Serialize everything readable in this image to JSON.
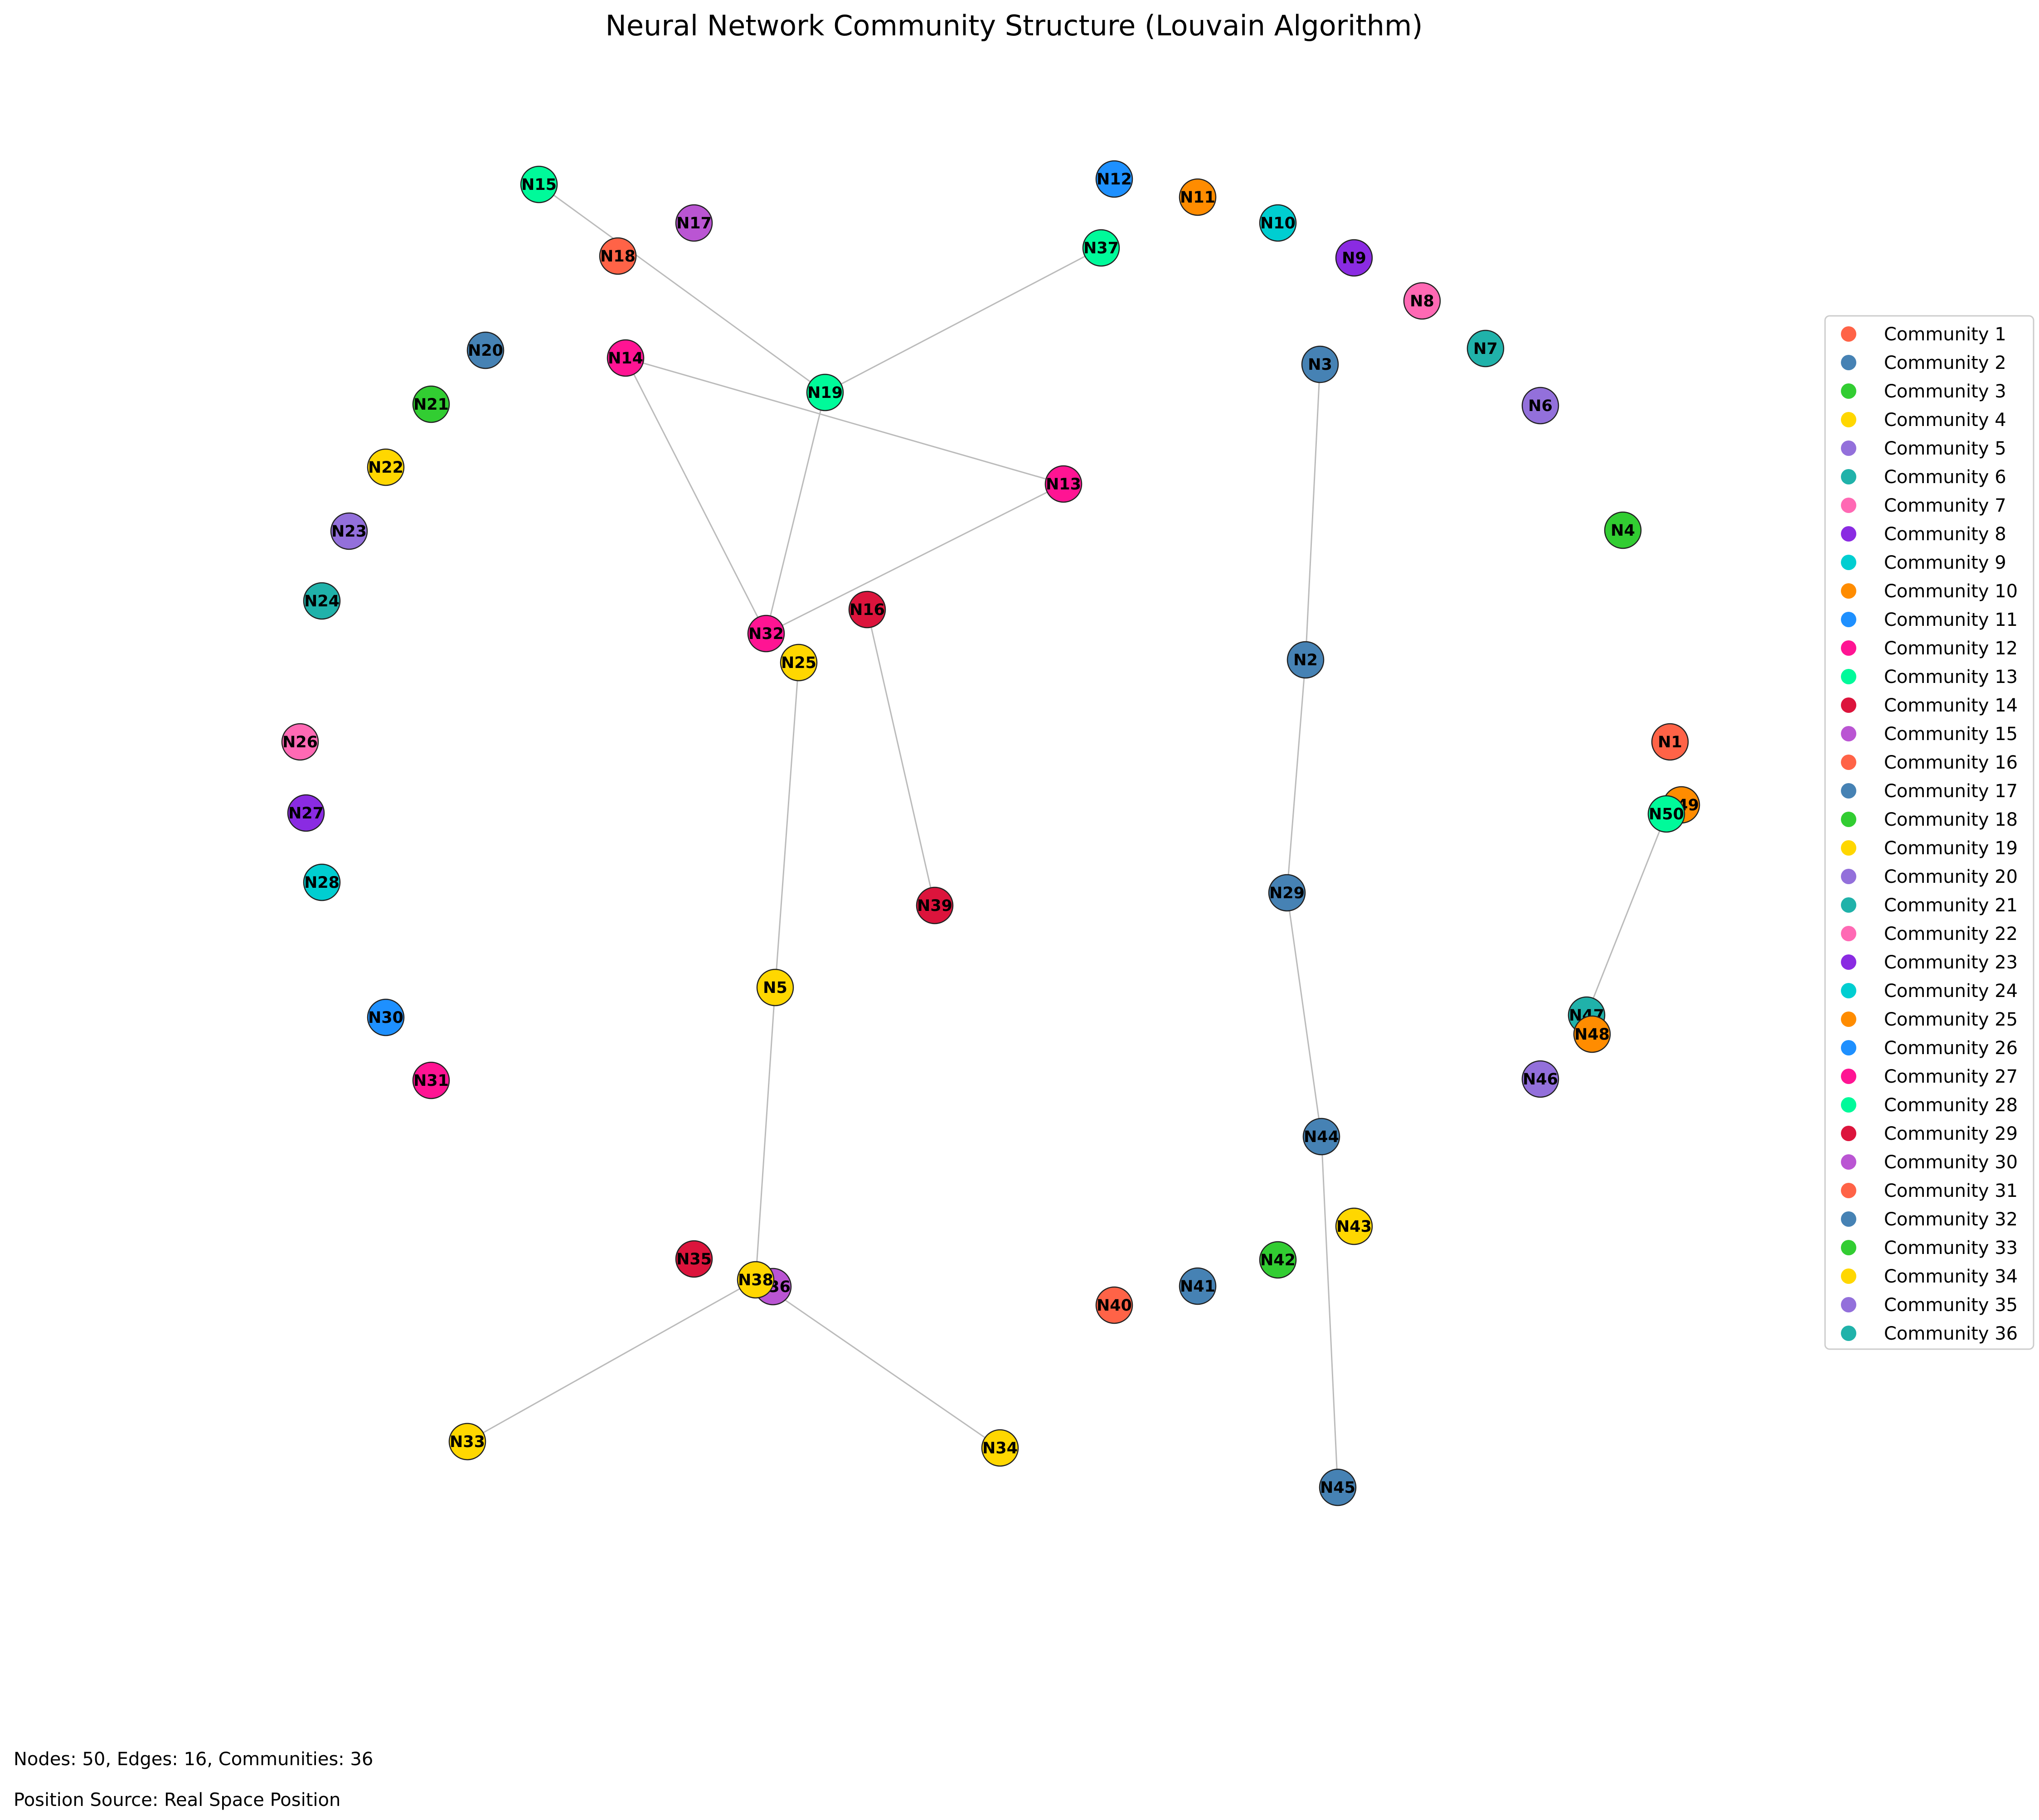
{
  "title": "Neural Network Community Structure (Louvain Algorithm)",
  "stats_text": "Nodes: 50, Edges: 16, Communities: 36",
  "position_text": "Position Source: Real Space Position",
  "communities": [
    {
      "label": "Community 1",
      "color": "#FF6347"
    },
    {
      "label": "Community 2",
      "color": "#4682B4"
    },
    {
      "label": "Community 3",
      "color": "#32CD32"
    },
    {
      "label": "Community 4",
      "color": "#FFD700"
    },
    {
      "label": "Community 5",
      "color": "#9370DB"
    },
    {
      "label": "Community 6",
      "color": "#20B2AA"
    },
    {
      "label": "Community 7",
      "color": "#FF69B4"
    },
    {
      "label": "Community 8",
      "color": "#8A2BE2"
    },
    {
      "label": "Community 9",
      "color": "#00CED1"
    },
    {
      "label": "Community 10",
      "color": "#FF8C00"
    },
    {
      "label": "Community 11",
      "color": "#1E90FF"
    },
    {
      "label": "Community 12",
      "color": "#FF1493"
    },
    {
      "label": "Community 13",
      "color": "#00FA9A"
    },
    {
      "label": "Community 14",
      "color": "#DC143C"
    },
    {
      "label": "Community 15",
      "color": "#BA55D3"
    },
    {
      "label": "Community 16",
      "color": "#FF6347"
    },
    {
      "label": "Community 17",
      "color": "#4682B4"
    },
    {
      "label": "Community 18",
      "color": "#32CD32"
    },
    {
      "label": "Community 19",
      "color": "#FFD700"
    },
    {
      "label": "Community 20",
      "color": "#9370DB"
    },
    {
      "label": "Community 21",
      "color": "#20B2AA"
    },
    {
      "label": "Community 22",
      "color": "#FF69B4"
    },
    {
      "label": "Community 23",
      "color": "#8A2BE2"
    },
    {
      "label": "Community 24",
      "color": "#00CED1"
    },
    {
      "label": "Community 25",
      "color": "#FF8C00"
    },
    {
      "label": "Community 26",
      "color": "#1E90FF"
    },
    {
      "label": "Community 27",
      "color": "#FF1493"
    },
    {
      "label": "Community 28",
      "color": "#00FA9A"
    },
    {
      "label": "Community 29",
      "color": "#DC143C"
    },
    {
      "label": "Community 30",
      "color": "#BA55D3"
    },
    {
      "label": "Community 31",
      "color": "#FF6347"
    },
    {
      "label": "Community 32",
      "color": "#4682B4"
    },
    {
      "label": "Community 33",
      "color": "#32CD32"
    },
    {
      "label": "Community 34",
      "color": "#FFD700"
    },
    {
      "label": "Community 35",
      "color": "#9370DB"
    },
    {
      "label": "Community 36",
      "color": "#20B2AA"
    }
  ],
  "nodes": [
    {
      "id": "N1",
      "community": 1
    },
    {
      "id": "N2",
      "community": 2
    },
    {
      "id": "N3",
      "community": 2
    },
    {
      "id": "N4",
      "community": 3
    },
    {
      "id": "N5",
      "community": 4
    },
    {
      "id": "N6",
      "community": 5
    },
    {
      "id": "N7",
      "community": 6
    },
    {
      "id": "N8",
      "community": 7
    },
    {
      "id": "N9",
      "community": 8
    },
    {
      "id": "N10",
      "community": 9
    },
    {
      "id": "N11",
      "community": 10
    },
    {
      "id": "N12",
      "community": 11
    },
    {
      "id": "N13",
      "community": 12
    },
    {
      "id": "N14",
      "community": 12
    },
    {
      "id": "N15",
      "community": 13
    },
    {
      "id": "N16",
      "community": 14
    },
    {
      "id": "N17",
      "community": 15
    },
    {
      "id": "N18",
      "community": 16
    },
    {
      "id": "N19",
      "community": 13
    },
    {
      "id": "N20",
      "community": 17
    },
    {
      "id": "N21",
      "community": 18
    },
    {
      "id": "N22",
      "community": 19
    },
    {
      "id": "N23",
      "community": 20
    },
    {
      "id": "N24",
      "community": 21
    },
    {
      "id": "N25",
      "community": 4
    },
    {
      "id": "N26",
      "community": 22
    },
    {
      "id": "N27",
      "community": 23
    },
    {
      "id": "N28",
      "community": 24
    },
    {
      "id": "N29",
      "community": 2
    },
    {
      "id": "N30",
      "community": 26
    },
    {
      "id": "N31",
      "community": 27
    },
    {
      "id": "N32",
      "community": 12
    },
    {
      "id": "N33",
      "community": 4
    },
    {
      "id": "N34",
      "community": 4
    },
    {
      "id": "N35",
      "community": 29
    },
    {
      "id": "N36",
      "community": 30
    },
    {
      "id": "N37",
      "community": 13
    },
    {
      "id": "N38",
      "community": 4
    },
    {
      "id": "N39",
      "community": 14
    },
    {
      "id": "N40",
      "community": 31
    },
    {
      "id": "N41",
      "community": 32
    },
    {
      "id": "N42",
      "community": 33
    },
    {
      "id": "N43",
      "community": 34
    },
    {
      "id": "N44",
      "community": 2
    },
    {
      "id": "N45",
      "community": 2
    },
    {
      "id": "N46",
      "community": 35
    },
    {
      "id": "N47",
      "community": 36
    },
    {
      "id": "N48",
      "community": 25
    },
    {
      "id": "N49",
      "community": 10
    },
    {
      "id": "N50",
      "community": 28
    }
  ],
  "edges": [
    [
      "N15",
      "N19"
    ],
    [
      "N37",
      "N19"
    ],
    [
      "N14",
      "N13"
    ],
    [
      "N14",
      "N32"
    ],
    [
      "N13",
      "N32"
    ],
    [
      "N19",
      "N32"
    ],
    [
      "N25",
      "N5"
    ],
    [
      "N5",
      "N38"
    ],
    [
      "N38",
      "N33"
    ],
    [
      "N38",
      "N34"
    ],
    [
      "N16",
      "N39"
    ],
    [
      "N3",
      "N2"
    ],
    [
      "N2",
      "N29"
    ],
    [
      "N29",
      "N44"
    ],
    [
      "N44",
      "N45"
    ],
    [
      "N50",
      "N47"
    ]
  ]
}
